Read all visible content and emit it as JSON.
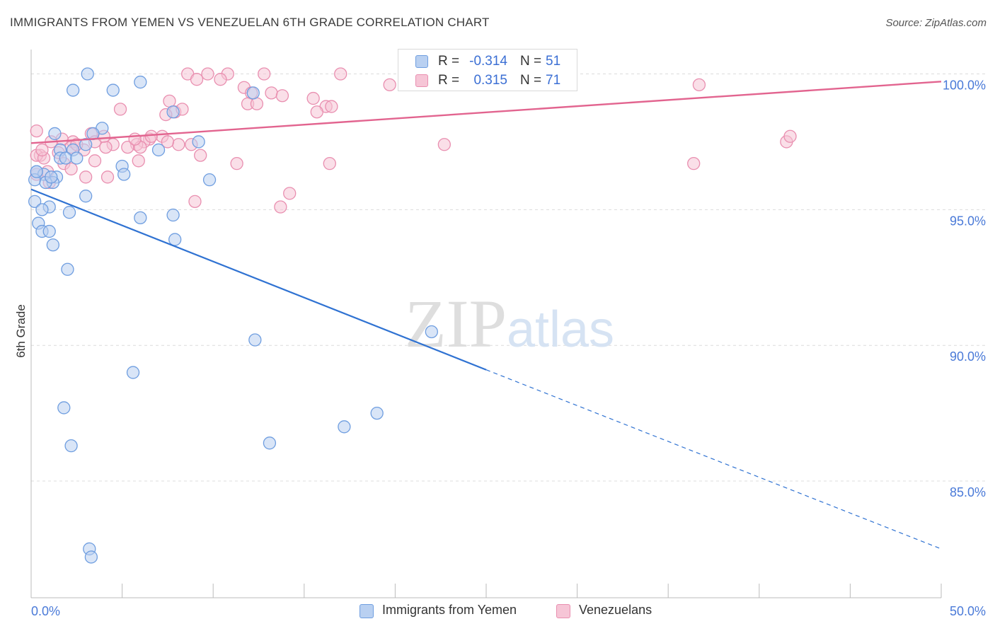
{
  "chart_data": {
    "type": "scatter",
    "title": "IMMIGRANTS FROM YEMEN VS VENEZUELAN 6TH GRADE CORRELATION CHART",
    "source": "Source: ZipAtlas.com",
    "watermark": "ZIPatlas",
    "xlabel": "",
    "ylabel": "6th Grade",
    "xlim": [
      0,
      50
    ],
    "ylim": [
      80.7,
      100.9
    ],
    "x_tick_labels": [
      "0.0%",
      "50.0%"
    ],
    "y_ticks": [
      {
        "value": 100,
        "label": "100.0%"
      },
      {
        "value": 95,
        "label": "95.0%"
      },
      {
        "value": 90,
        "label": "90.0%"
      },
      {
        "value": 85,
        "label": "85.0%"
      }
    ],
    "grid": true,
    "legend_position": "top-center",
    "series": [
      {
        "name": "Immigrants from Yemen",
        "color": "#6f9ee0",
        "fill": "#b9d0f1",
        "r_label": "R =",
        "r_value": "-0.314",
        "n_label": "N =",
        "n_value": "51",
        "trend": {
          "x0": 0,
          "y0": 95.75,
          "x1": 25,
          "y1": 89.1,
          "dash_x1": 50,
          "dash_y1": 82.5,
          "color": "#2f72d2"
        },
        "points": [
          [
            3.1,
            100.0
          ],
          [
            2.3,
            99.4
          ],
          [
            4.5,
            99.4
          ],
          [
            6.0,
            99.7
          ],
          [
            12.2,
            99.3
          ],
          [
            7.8,
            98.6
          ],
          [
            3.9,
            98.0
          ],
          [
            1.3,
            97.8
          ],
          [
            3.4,
            97.8
          ],
          [
            3.0,
            97.4
          ],
          [
            9.2,
            97.5
          ],
          [
            1.6,
            97.2
          ],
          [
            2.3,
            97.2
          ],
          [
            7.0,
            97.2
          ],
          [
            1.6,
            96.9
          ],
          [
            1.9,
            96.9
          ],
          [
            5.0,
            96.6
          ],
          [
            0.3,
            96.4
          ],
          [
            0.7,
            96.3
          ],
          [
            1.4,
            96.2
          ],
          [
            0.2,
            96.1
          ],
          [
            5.1,
            96.3
          ],
          [
            1.2,
            96.0
          ],
          [
            9.8,
            96.1
          ],
          [
            0.8,
            96.0
          ],
          [
            3.0,
            95.5
          ],
          [
            0.2,
            95.3
          ],
          [
            1.0,
            95.1
          ],
          [
            0.6,
            95.0
          ],
          [
            2.1,
            94.9
          ],
          [
            6.0,
            94.7
          ],
          [
            7.8,
            94.8
          ],
          [
            0.4,
            94.5
          ],
          [
            0.6,
            94.2
          ],
          [
            1.0,
            94.2
          ],
          [
            7.9,
            93.9
          ],
          [
            1.2,
            93.7
          ],
          [
            2.0,
            92.8
          ],
          [
            12.3,
            90.2
          ],
          [
            22.0,
            90.5
          ],
          [
            5.6,
            89.0
          ],
          [
            1.8,
            87.7
          ],
          [
            19.0,
            87.5
          ],
          [
            17.2,
            87.0
          ],
          [
            13.1,
            86.4
          ],
          [
            2.2,
            86.3
          ],
          [
            3.2,
            82.5
          ],
          [
            3.3,
            82.2
          ],
          [
            0.3,
            96.4
          ],
          [
            1.1,
            96.2
          ],
          [
            2.5,
            96.9
          ]
        ]
      },
      {
        "name": "Venezuelans",
        "color": "#e98fb0",
        "fill": "#f6c5d6",
        "r_label": "R =",
        "r_value": "0.315",
        "n_label": "N =",
        "n_value": "71",
        "trend": {
          "x0": 0,
          "y0": 97.45,
          "x1": 50,
          "y1": 99.72,
          "color": "#e2648f"
        },
        "points": [
          [
            8.6,
            100.0
          ],
          [
            9.7,
            100.0
          ],
          [
            10.8,
            100.0
          ],
          [
            12.8,
            100.0
          ],
          [
            17.0,
            100.0
          ],
          [
            9.1,
            99.8
          ],
          [
            10.4,
            99.8
          ],
          [
            11.7,
            99.5
          ],
          [
            19.7,
            99.6
          ],
          [
            36.7,
            99.6
          ],
          [
            12.1,
            99.3
          ],
          [
            13.2,
            99.3
          ],
          [
            13.8,
            99.2
          ],
          [
            15.5,
            99.1
          ],
          [
            7.6,
            99.0
          ],
          [
            11.9,
            98.9
          ],
          [
            12.4,
            98.9
          ],
          [
            16.2,
            98.8
          ],
          [
            4.9,
            98.7
          ],
          [
            15.7,
            98.6
          ],
          [
            7.9,
            98.6
          ],
          [
            7.4,
            98.5
          ],
          [
            0.3,
            97.9
          ],
          [
            3.3,
            97.8
          ],
          [
            7.2,
            97.7
          ],
          [
            6.5,
            97.6
          ],
          [
            6.2,
            97.5
          ],
          [
            2.3,
            97.5
          ],
          [
            1.7,
            97.6
          ],
          [
            3.5,
            97.5
          ],
          [
            4.5,
            97.4
          ],
          [
            5.8,
            97.4
          ],
          [
            8.1,
            97.4
          ],
          [
            8.8,
            97.4
          ],
          [
            1.1,
            97.5
          ],
          [
            5.3,
            97.3
          ],
          [
            6.0,
            97.3
          ],
          [
            2.2,
            97.3
          ],
          [
            4.1,
            97.3
          ],
          [
            2.9,
            97.2
          ],
          [
            1.5,
            97.1
          ],
          [
            9.3,
            97.0
          ],
          [
            0.5,
            97.0
          ],
          [
            0.3,
            97.0
          ],
          [
            0.7,
            96.9
          ],
          [
            1.8,
            96.7
          ],
          [
            3.5,
            96.8
          ],
          [
            5.9,
            96.8
          ],
          [
            11.3,
            96.7
          ],
          [
            16.4,
            96.7
          ],
          [
            36.4,
            96.7
          ],
          [
            0.9,
            96.4
          ],
          [
            2.2,
            96.5
          ],
          [
            0.3,
            96.3
          ],
          [
            1.0,
            96.0
          ],
          [
            4.2,
            96.2
          ],
          [
            3.0,
            96.2
          ],
          [
            14.2,
            95.6
          ],
          [
            9.0,
            95.3
          ],
          [
            13.7,
            95.1
          ],
          [
            22.7,
            97.4
          ],
          [
            41.5,
            97.5
          ],
          [
            41.7,
            97.7
          ],
          [
            7.5,
            97.5
          ],
          [
            5.7,
            97.6
          ],
          [
            6.6,
            97.7
          ],
          [
            8.3,
            98.7
          ],
          [
            4.0,
            97.7
          ],
          [
            2.5,
            97.4
          ],
          [
            0.6,
            97.2
          ],
          [
            16.5,
            98.8
          ]
        ]
      }
    ]
  }
}
